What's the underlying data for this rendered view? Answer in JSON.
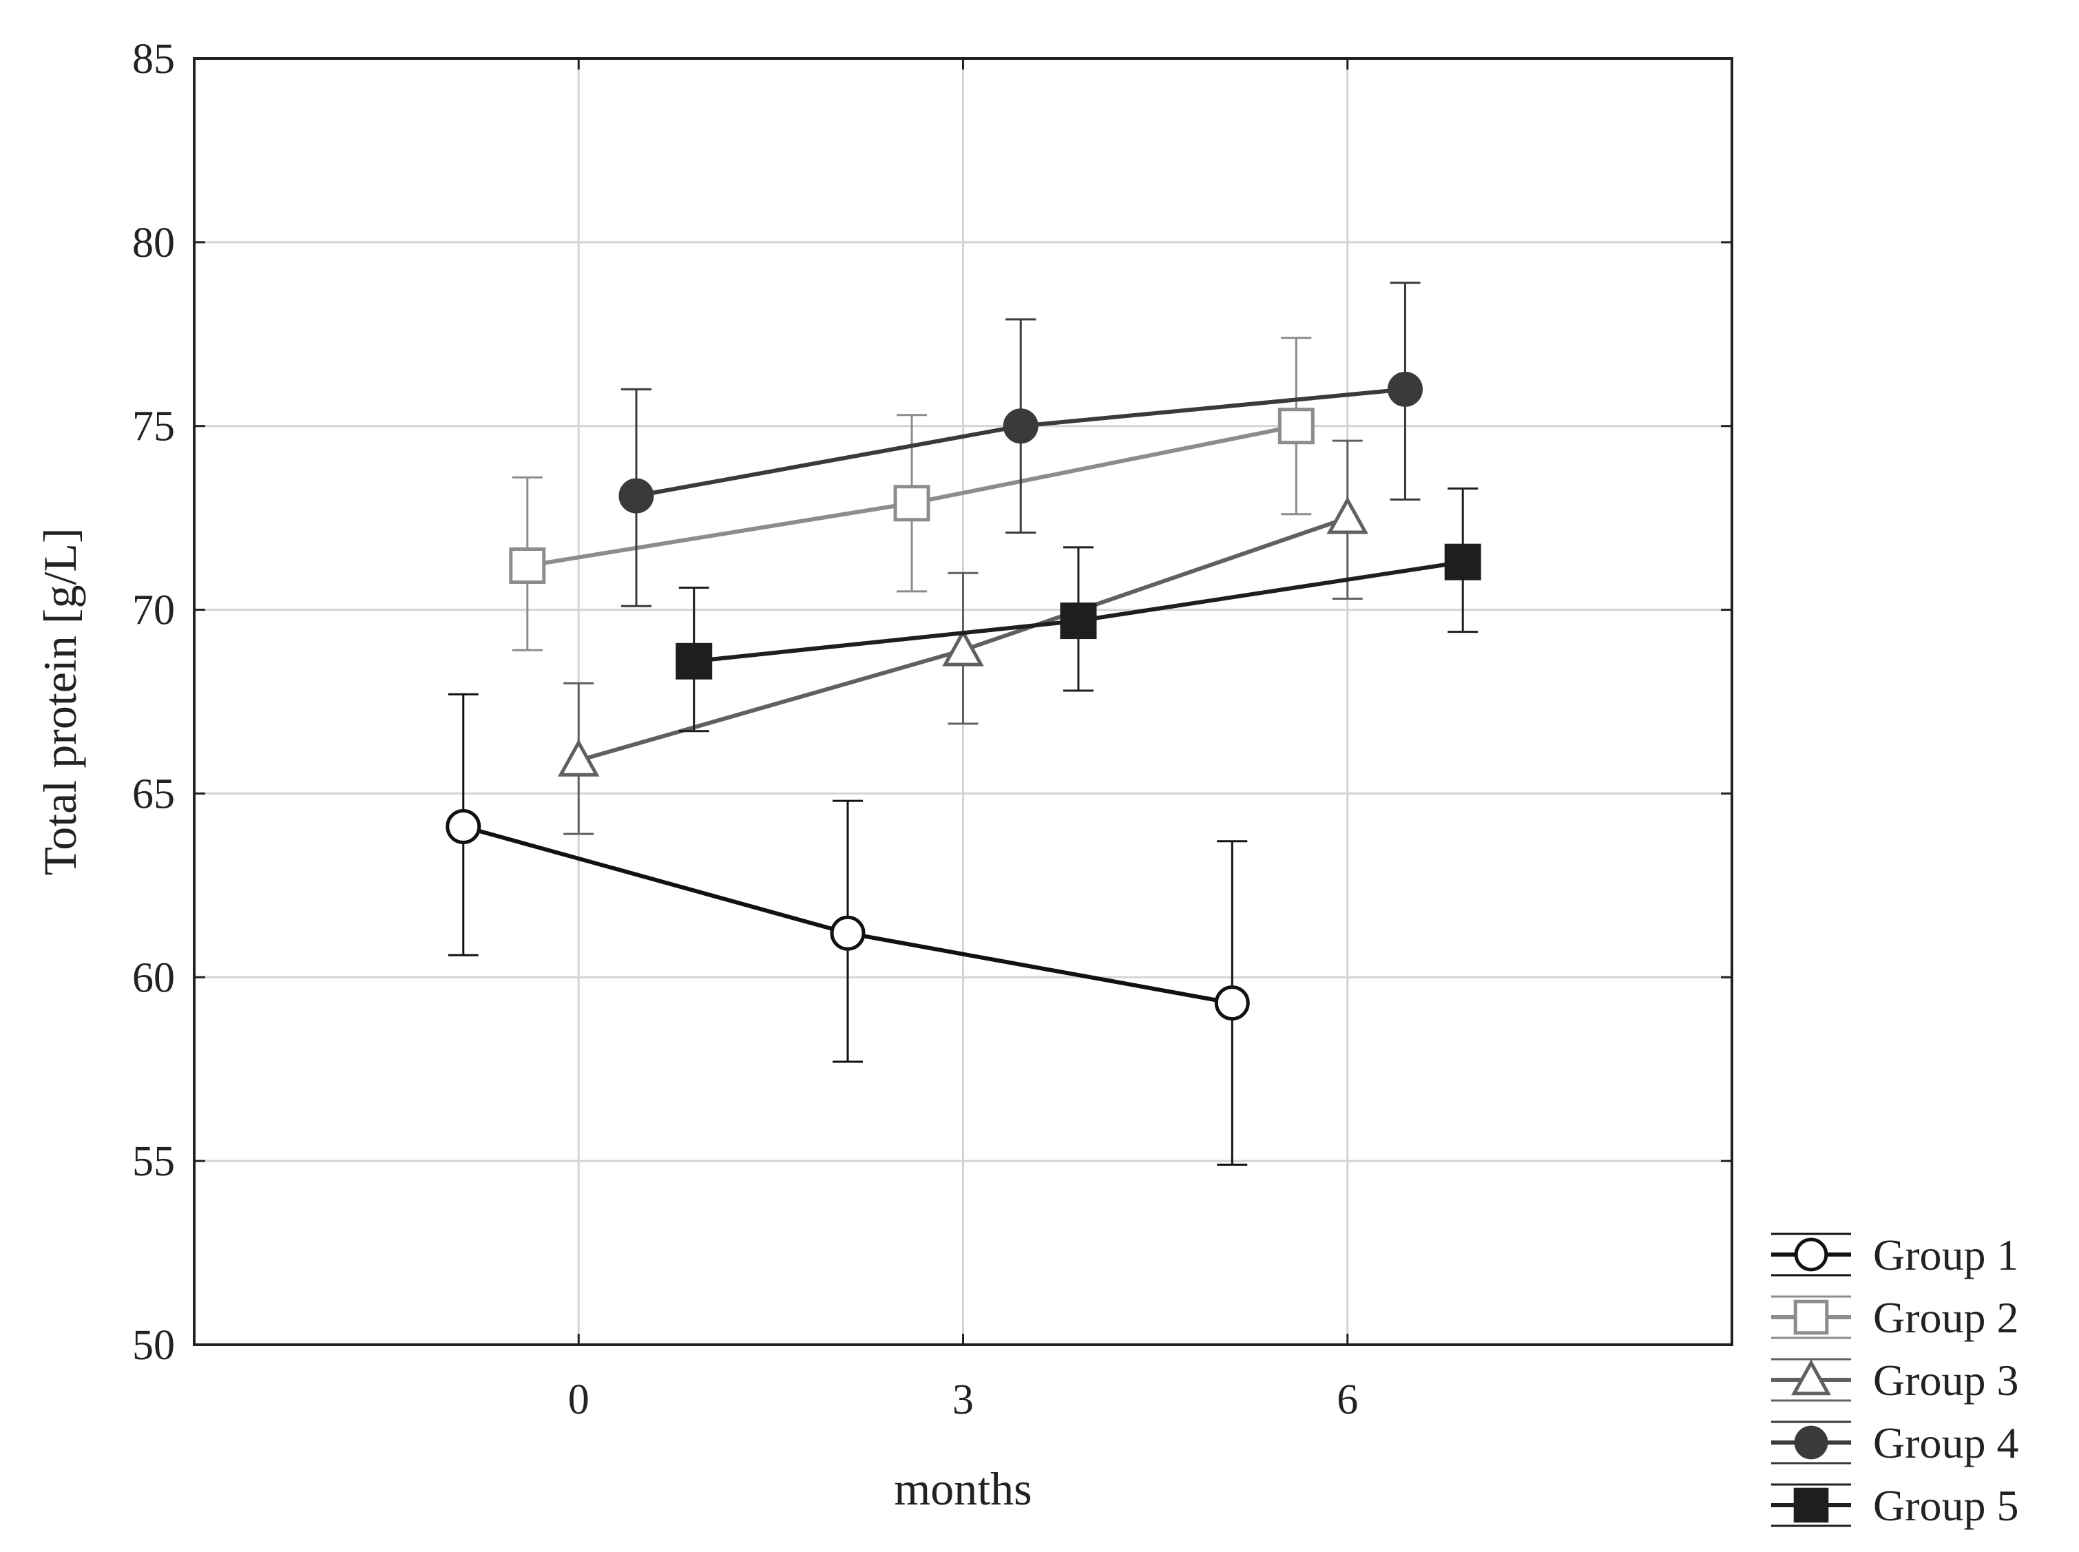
{
  "chart_data": {
    "type": "line",
    "title": "",
    "xlabel": "months",
    "ylabel": "Total protein [g/L]",
    "x_categories": [
      "0",
      "3",
      "6"
    ],
    "ylim": [
      50,
      85
    ],
    "yticks": [
      50,
      55,
      60,
      65,
      70,
      75,
      80,
      85
    ],
    "grid": true,
    "legend_position": "bottom-right outside",
    "series": [
      {
        "name": "Group 1",
        "marker": "open-circle",
        "color": "#111111",
        "x": [
          -0.9,
          2.1,
          5.1
        ],
        "y": [
          64.1,
          61.2,
          59.3
        ],
        "err_low": [
          60.6,
          57.7,
          54.9
        ],
        "err_high": [
          67.7,
          64.8,
          63.7
        ]
      },
      {
        "name": "Group 2",
        "marker": "open-square",
        "color": "#8c8c8c",
        "x": [
          -0.4,
          2.6,
          5.6
        ],
        "y": [
          71.2,
          72.9,
          75.0
        ],
        "err_low": [
          68.9,
          70.5,
          72.6
        ],
        "err_high": [
          73.6,
          75.3,
          77.4
        ]
      },
      {
        "name": "Group 3",
        "marker": "open-triangle",
        "color": "#606060",
        "x": [
          0.0,
          3.0,
          6.0
        ],
        "y": [
          65.9,
          68.9,
          72.5
        ],
        "err_low": [
          63.9,
          66.9,
          70.3
        ],
        "err_high": [
          68.0,
          71.0,
          74.6
        ]
      },
      {
        "name": "Group 4",
        "marker": "filled-circle",
        "color": "#3a3a3a",
        "x": [
          0.45,
          3.45,
          6.45
        ],
        "y": [
          73.1,
          75.0,
          76.0
        ],
        "err_low": [
          70.1,
          72.1,
          73.0
        ],
        "err_high": [
          76.0,
          77.9,
          78.9
        ]
      },
      {
        "name": "Group 5",
        "marker": "filled-square",
        "color": "#1e1e1e",
        "x": [
          0.9,
          3.9,
          6.9
        ],
        "y": [
          68.6,
          69.7,
          71.3
        ],
        "err_low": [
          66.7,
          67.8,
          69.4
        ],
        "err_high": [
          70.6,
          71.7,
          73.3
        ]
      }
    ]
  }
}
